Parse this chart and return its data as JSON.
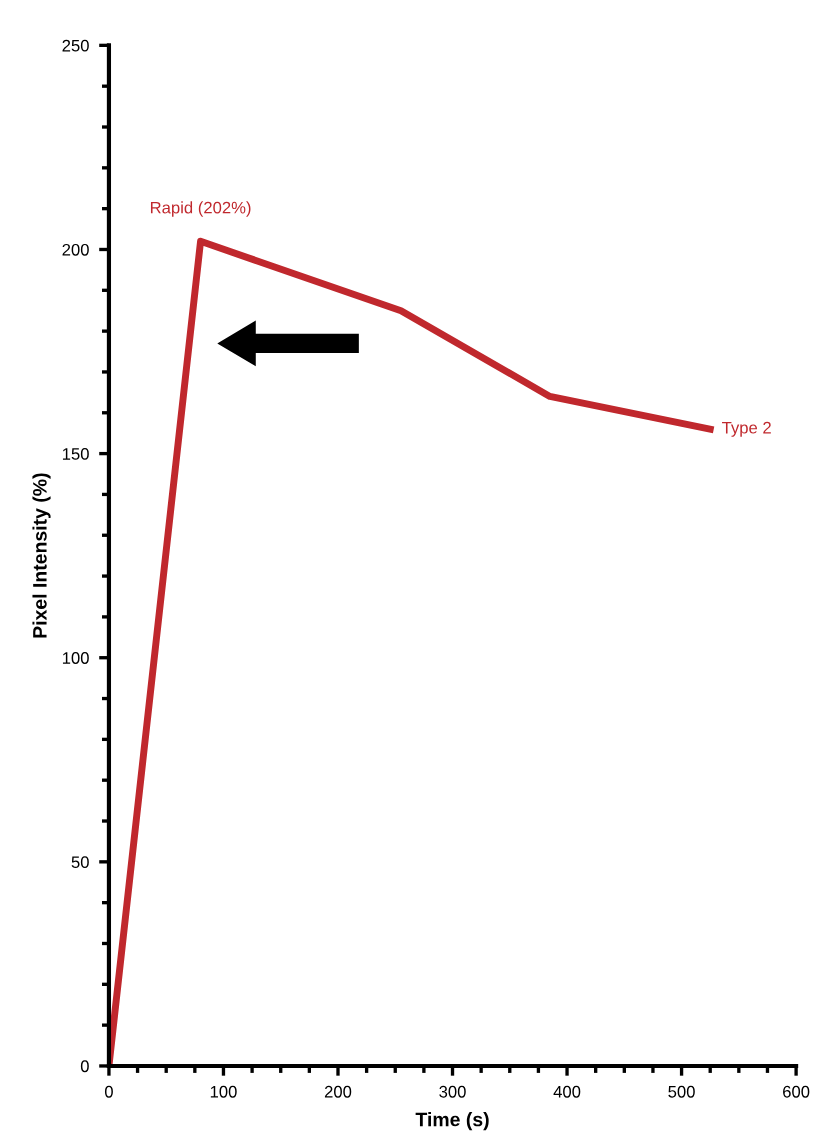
{
  "chart_data": {
    "type": "line",
    "xlabel": "Time (s)",
    "ylabel": "Pixel Intensity (%)",
    "x": [
      0,
      80,
      255,
      385,
      525
    ],
    "series": [
      {
        "name": "Type 2",
        "color": "#c0282d",
        "values": [
          0,
          202,
          185,
          164,
          156
        ]
      }
    ],
    "xlim": [
      0,
      600
    ],
    "ylim": [
      0,
      250
    ],
    "xticks": [
      0,
      100,
      200,
      300,
      400,
      500,
      600
    ],
    "yticks": [
      0,
      50,
      100,
      150,
      200,
      250
    ],
    "annotations": [
      {
        "text": "Rapid (202%)",
        "x": 80,
        "y": 202
      }
    ],
    "grid": false,
    "legend": false,
    "marker": "none",
    "line_style": "solid"
  }
}
